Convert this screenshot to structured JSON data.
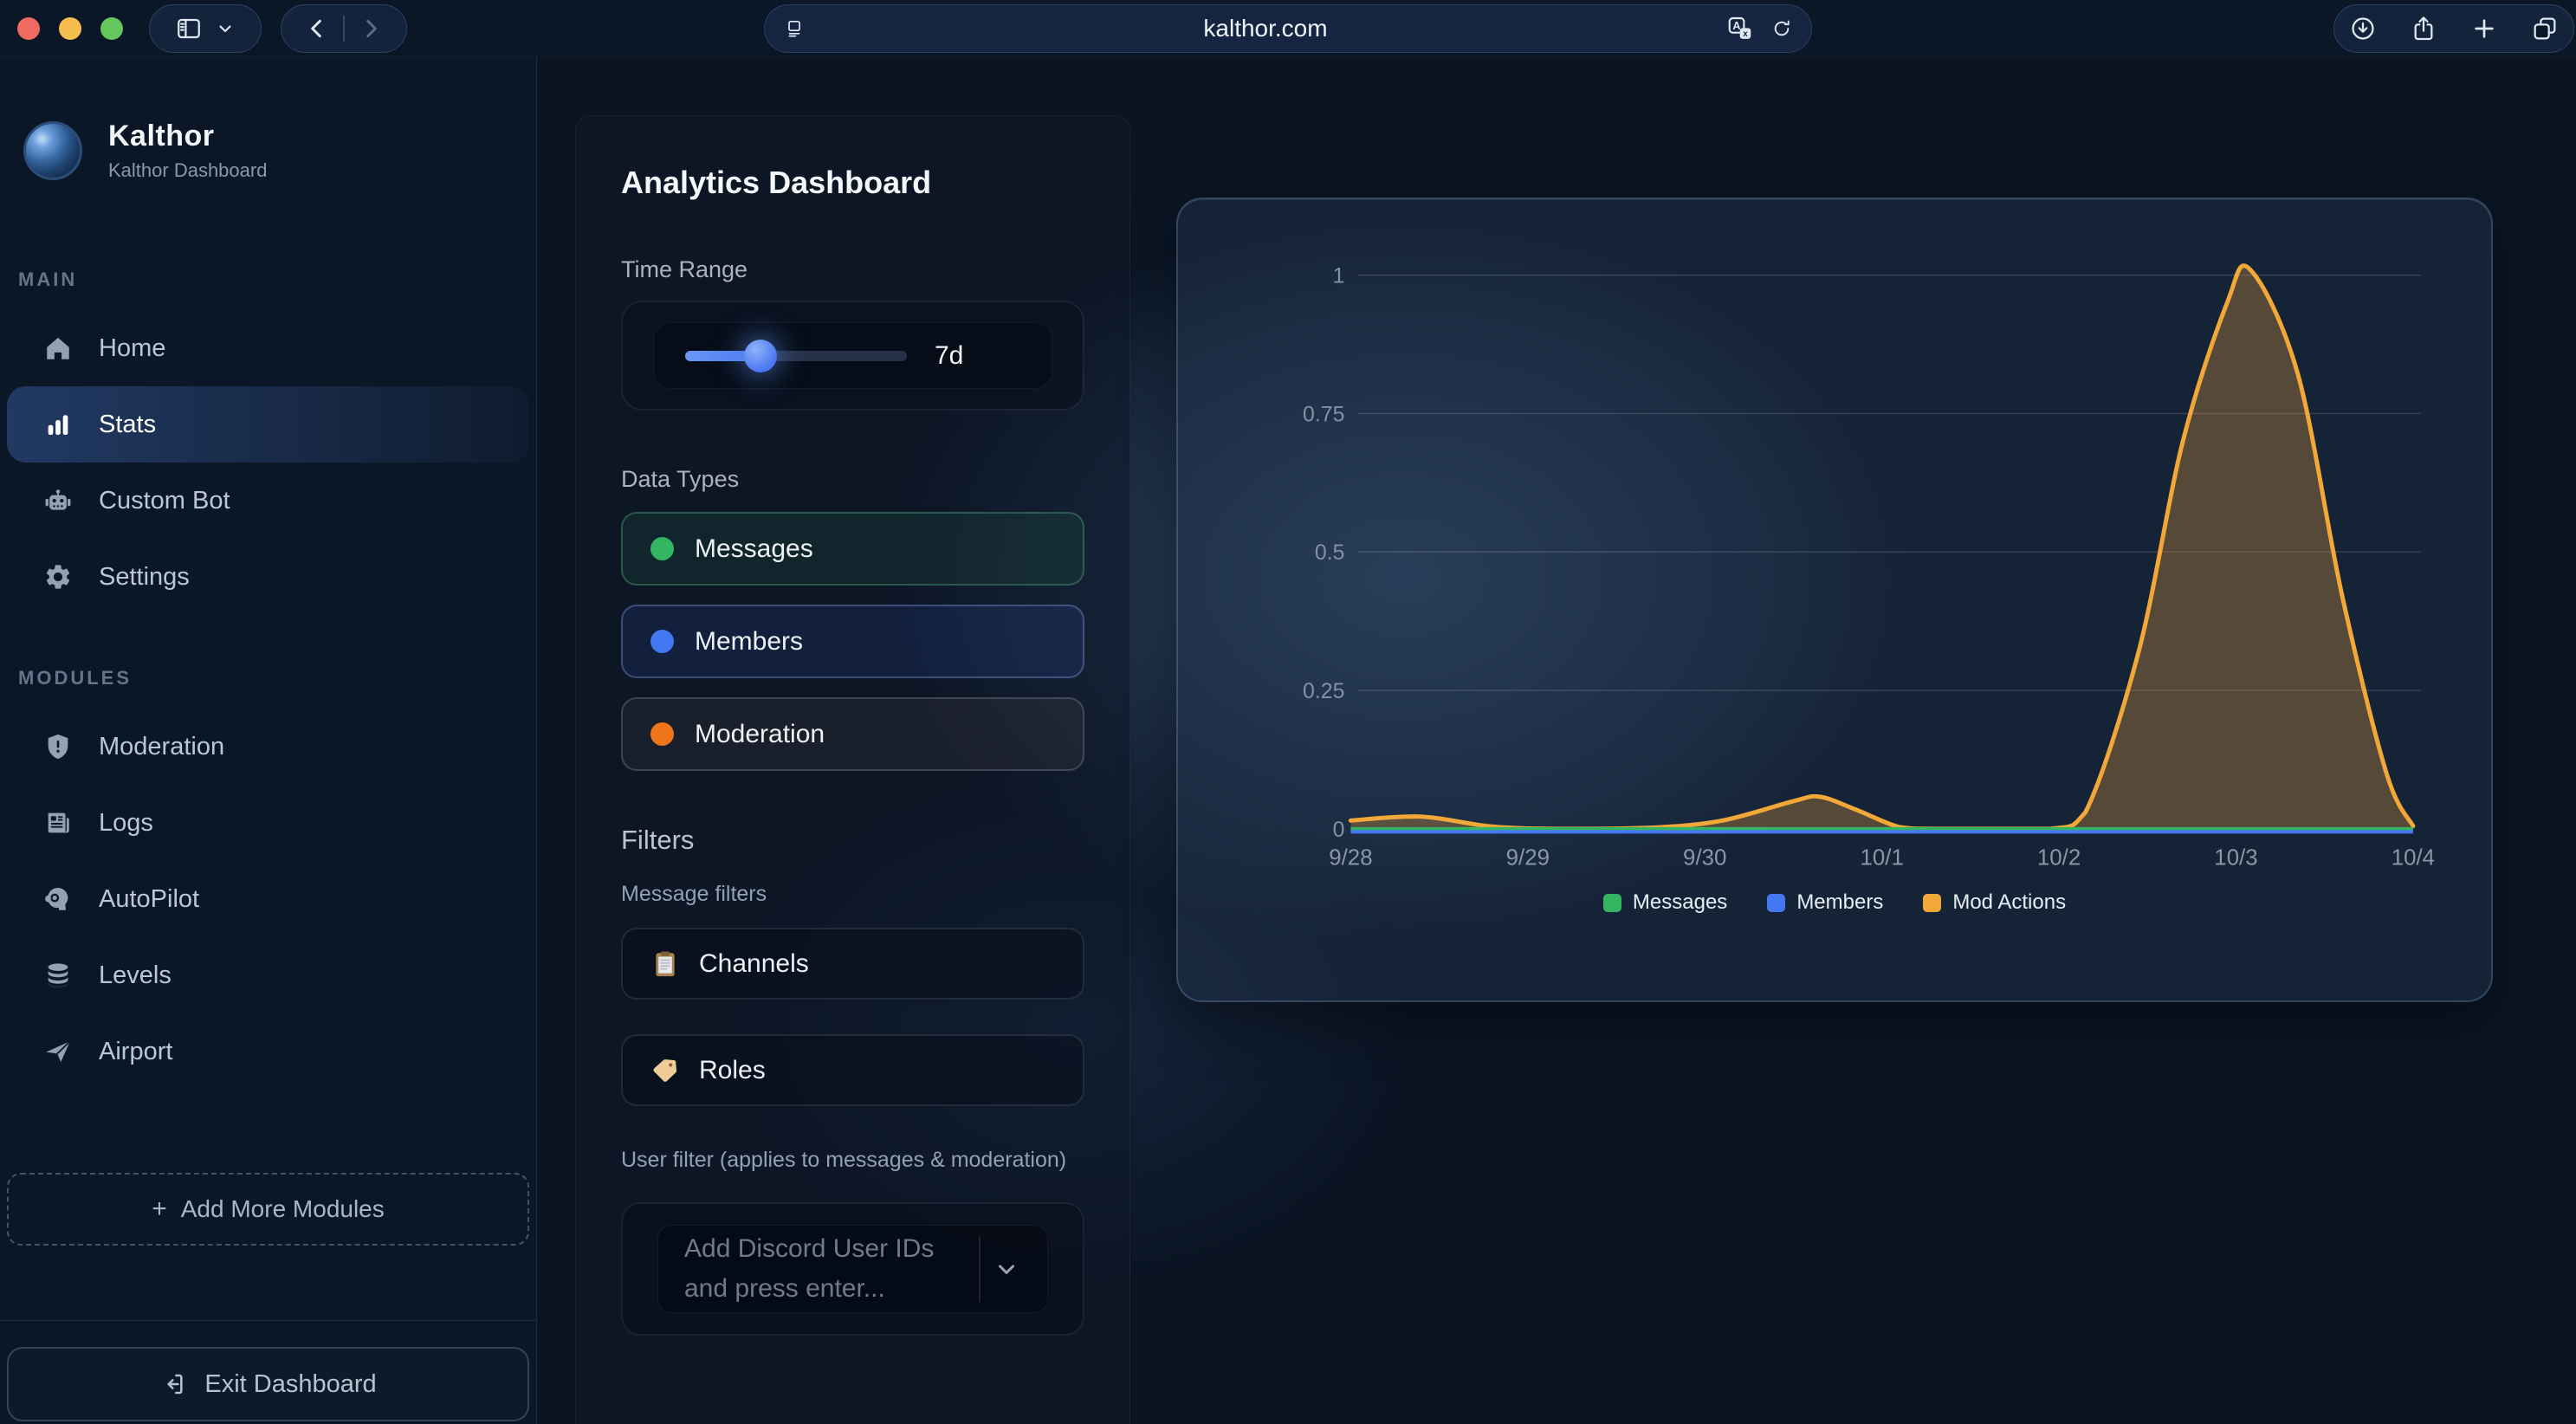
{
  "browser": {
    "url": "kalthor.com",
    "traffic_light_colors": [
      "#ef6b61",
      "#f6be50",
      "#65c65c"
    ],
    "left_icons": [
      "sidebar-panel-icon",
      "chevron-down-icon",
      "back-icon",
      "forward-icon"
    ],
    "url_icons": [
      "reader-icon",
      "translate-icon",
      "reload-icon"
    ],
    "right_icons": [
      "download-icon",
      "share-icon",
      "new-tab-icon",
      "tab-overview-icon"
    ]
  },
  "sidebar": {
    "brand": {
      "name": "Kalthor",
      "subtitle": "Kalthor Dashboard"
    },
    "sections": [
      {
        "label": "MAIN",
        "items": [
          {
            "label": "Home",
            "icon": "home",
            "active": false
          },
          {
            "label": "Stats",
            "icon": "stats",
            "active": true
          },
          {
            "label": "Custom Bot",
            "icon": "robot",
            "active": false
          },
          {
            "label": "Settings",
            "icon": "gear",
            "active": false
          }
        ]
      },
      {
        "label": "MODULES",
        "items": [
          {
            "label": "Moderation",
            "icon": "shield",
            "active": false
          },
          {
            "label": "Logs",
            "icon": "logs",
            "active": false
          },
          {
            "label": "AutoPilot",
            "icon": "autopilot",
            "active": false
          },
          {
            "label": "Levels",
            "icon": "levels",
            "active": false
          },
          {
            "label": "Airport",
            "icon": "plane",
            "active": false
          }
        ]
      }
    ],
    "add_modules_plus": "+",
    "add_modules_label": "Add More Modules",
    "exit_label": "Exit Dashboard"
  },
  "panel": {
    "title": "Analytics Dashboard",
    "time_range": {
      "label": "Time Range",
      "value": "7d"
    },
    "data_types": {
      "label": "Data Types",
      "options": [
        {
          "label": "Messages",
          "dot_color": "#34b562",
          "bg": "rgba(45,120,82,0.16)",
          "border": "rgba(95,185,135,0.34)"
        },
        {
          "label": "Members",
          "dot_color": "#4478f2",
          "bg": "rgba(58,98,210,0.14)",
          "border": "rgba(132,152,222,0.38)"
        },
        {
          "label": "Moderation",
          "dot_color": "#ee7519",
          "bg": "rgba(120,100,88,0.13)",
          "border": "rgba(185,185,195,0.24)"
        }
      ]
    },
    "filters": {
      "heading": "Filters",
      "message_filters_label": "Message filters",
      "buttons": [
        {
          "label": "Channels",
          "icon": "clipboard"
        },
        {
          "label": "Roles",
          "icon": "tag"
        }
      ],
      "user_filter_label": "User filter (applies to messages & moderation)",
      "user_input_placeholder": "Add Discord User IDs and press enter..."
    }
  },
  "chart_data": {
    "type": "area",
    "title": "",
    "xlabel": "",
    "ylabel": "",
    "categories": [
      "9/28",
      "9/29",
      "9/30",
      "10/1",
      "10/2",
      "10/3",
      "10/4"
    ],
    "series": [
      {
        "name": "Messages",
        "color": "#34b562",
        "fill": "rgba(52,181,98,0.25)",
        "values": [
          0,
          0,
          0,
          0,
          0,
          0,
          0
        ]
      },
      {
        "name": "Members",
        "color": "#4478f2",
        "fill": "rgba(68,120,242,0.25)",
        "values": [
          0,
          0,
          0,
          0,
          0,
          0,
          0
        ]
      },
      {
        "name": "Mod Actions",
        "color": "#f2a838",
        "fill": "rgba(242,163,56,0.30)",
        "values": [
          0.02,
          0.01,
          0.02,
          0.04,
          0,
          1,
          0
        ]
      }
    ],
    "mod_actions_curve": [
      [
        0,
        0.015
      ],
      [
        0.4,
        0.022
      ],
      [
        0.8,
        0.004
      ],
      [
        1.2,
        0.0
      ],
      [
        1.7,
        0.002
      ],
      [
        2.1,
        0.015
      ],
      [
        2.5,
        0.05
      ],
      [
        2.65,
        0.058
      ],
      [
        2.85,
        0.035
      ],
      [
        3.1,
        0.003
      ],
      [
        3.3,
        0
      ],
      [
        3.95,
        0
      ],
      [
        4.15,
        0.03
      ],
      [
        4.45,
        0.32
      ],
      [
        4.7,
        0.7
      ],
      [
        4.95,
        0.95
      ],
      [
        5.08,
        1.01
      ],
      [
        5.35,
        0.82
      ],
      [
        5.6,
        0.42
      ],
      [
        5.85,
        0.1
      ],
      [
        6,
        0.005
      ]
    ],
    "yticks": [
      0,
      0.25,
      0.5,
      0.75,
      1
    ],
    "ylim": [
      0,
      1.05
    ],
    "grid": true,
    "legend_position": "bottom"
  }
}
